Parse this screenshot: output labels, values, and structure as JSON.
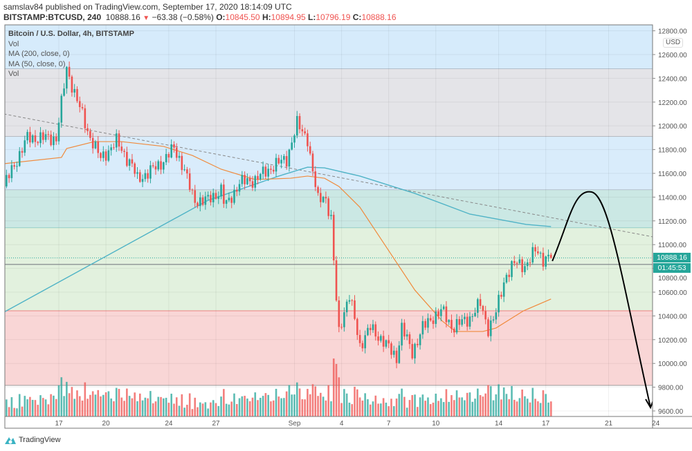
{
  "header": {
    "publisher_line": "samslav84 published on TradingView.com, September 17, 2020 18:14:09 UTC",
    "symbol": "BITSTAMP:BTCUSD, 240",
    "last": "10888.16",
    "change": "−63.38 (−0.58%)",
    "o_label": "O:",
    "o": "10845.50",
    "h_label": "H:",
    "h": "10894.95",
    "l_label": "L:",
    "l": "10796.19",
    "c_label": "C:",
    "c": "10888.16",
    "direction_icon": "triangle-down-icon"
  },
  "legend": {
    "title": "Bitcoin / U.S. Dollar, 4h, BITSTAMP",
    "items": [
      "Vol",
      "MA (200, close, 0)",
      "MA (50, close, 0)",
      "Vol"
    ]
  },
  "axis": {
    "currency": "USD",
    "price_ticks": [
      "12800.00",
      "12600.00",
      "12400.00",
      "12200.00",
      "12000.00",
      "11800.00",
      "11600.00",
      "11400.00",
      "11200.00",
      "11000.00",
      "10800.00",
      "10600.00",
      "10400.00",
      "10200.00",
      "10000.00",
      "9800.00",
      "9600.00"
    ],
    "price_values": [
      12800,
      12600,
      12400,
      12200,
      12000,
      11800,
      11600,
      11400,
      11200,
      11000,
      10800,
      10600,
      10400,
      10200,
      10000,
      9800,
      9600
    ],
    "time_ticks": [
      {
        "label": "17",
        "date": "2020-08-17"
      },
      {
        "label": "20",
        "date": "2020-08-20"
      },
      {
        "label": "24",
        "date": "2020-08-24"
      },
      {
        "label": "27",
        "date": "2020-08-27"
      },
      {
        "label": "Sep",
        "date": "2020-09-01"
      },
      {
        "label": "4",
        "date": "2020-09-04"
      },
      {
        "label": "7",
        "date": "2020-09-07"
      },
      {
        "label": "10",
        "date": "2020-09-10"
      },
      {
        "label": "14",
        "date": "2020-09-14"
      },
      {
        "label": "17",
        "date": "2020-09-17"
      },
      {
        "label": "21",
        "date": "2020-09-21"
      },
      {
        "label": "24",
        "date": "2020-09-24"
      }
    ],
    "last_price_label": "10888.16",
    "countdown_label": "01:45:53"
  },
  "chart_data": {
    "type": "candlestick",
    "interval": "4h",
    "price_path": [
      [
        "2020-08-13T12:00",
        11490
      ],
      [
        "2020-08-15T00:00",
        11897
      ],
      [
        "2020-08-16T20:00",
        11897
      ],
      [
        "2020-08-17T12:00",
        12478
      ],
      [
        "2020-08-18T20:00",
        11955
      ],
      [
        "2020-08-19T16:00",
        11722
      ],
      [
        "2020-08-20T16:00",
        11867
      ],
      [
        "2020-08-21T16:00",
        11664
      ],
      [
        "2020-08-22T00:00",
        11548
      ],
      [
        "2020-08-23T08:00",
        11664
      ],
      [
        "2020-08-24T08:00",
        11809
      ],
      [
        "2020-08-24T22:00",
        11664
      ],
      [
        "2020-08-25T14:00",
        11373
      ],
      [
        "2020-08-26T12:00",
        11373
      ],
      [
        "2020-08-27T08:00",
        11460
      ],
      [
        "2020-08-27T14:00",
        11315
      ],
      [
        "2020-08-28T12:00",
        11519
      ],
      [
        "2020-08-29T12:00",
        11548
      ],
      [
        "2020-08-30T16:00",
        11664
      ],
      [
        "2020-08-31T12:00",
        11722
      ],
      [
        "2020-09-01T04:00",
        12013
      ],
      [
        "2020-09-01T20:00",
        11897
      ],
      [
        "2020-09-02T02:00",
        11664
      ],
      [
        "2020-09-02T12:00",
        11373
      ],
      [
        "2020-09-02T22:00",
        11431
      ],
      [
        "2020-09-03T08:00",
        11199
      ],
      [
        "2020-09-03T14:00",
        10676
      ],
      [
        "2020-09-03T20:00",
        10269
      ],
      [
        "2020-09-04T02:00",
        10414
      ],
      [
        "2020-09-04T12:00",
        10559
      ],
      [
        "2020-09-04T22:00",
        10327
      ],
      [
        "2020-09-05T04:00",
        10152
      ],
      [
        "2020-09-05T20:00",
        10298
      ],
      [
        "2020-09-06T12:00",
        10210
      ],
      [
        "2020-09-07T14:00",
        10036
      ],
      [
        "2020-09-07T18:00",
        10327
      ],
      [
        "2020-09-08T12:00",
        10094
      ],
      [
        "2020-09-09T04:00",
        10298
      ],
      [
        "2020-09-09T18:00",
        10385
      ],
      [
        "2020-09-10T10:00",
        10443
      ],
      [
        "2020-09-11T02:00",
        10298
      ],
      [
        "2020-09-11T18:00",
        10356
      ],
      [
        "2020-09-12T04:00",
        10385
      ],
      [
        "2020-09-12T20:00",
        10501
      ],
      [
        "2020-09-13T08:00",
        10298
      ],
      [
        "2020-09-13T18:00",
        10385
      ],
      [
        "2020-09-14T10:00",
        10734
      ],
      [
        "2020-09-15T02:00",
        10850
      ],
      [
        "2020-09-15T18:00",
        10821
      ],
      [
        "2020-09-16T10:00",
        10966
      ],
      [
        "2020-09-16T20:00",
        10879
      ],
      [
        "2020-09-17T08:00",
        10888.16
      ]
    ],
    "ma200": [
      [
        "2020-08-13T12:00",
        10431
      ],
      [
        "2020-08-26T12:00",
        11373
      ],
      [
        "2020-08-31T00:00",
        11577
      ],
      [
        "2020-09-01T20:00",
        11652
      ],
      [
        "2020-09-02T22:00",
        11646
      ],
      [
        "2020-09-05T04:00",
        11577
      ],
      [
        "2020-09-08T16:00",
        11431
      ],
      [
        "2020-09-12T04:00",
        11257
      ],
      [
        "2020-09-15T18:00",
        11170
      ],
      [
        "2020-09-17T08:00",
        11152
      ]
    ],
    "ma50": [
      [
        "2020-08-13T12:00",
        11681
      ],
      [
        "2020-08-17T04:00",
        11734
      ],
      [
        "2020-08-17T12:00",
        11809
      ],
      [
        "2020-08-19T06:00",
        11867
      ],
      [
        "2020-08-21T00:00",
        11867
      ],
      [
        "2020-08-23T16:00",
        11827
      ],
      [
        "2020-08-25T12:00",
        11751
      ],
      [
        "2020-08-27T08:00",
        11635
      ],
      [
        "2020-08-29T12:00",
        11548
      ],
      [
        "2020-08-31T18:00",
        11559
      ],
      [
        "2020-09-01T20:00",
        11577
      ],
      [
        "2020-09-02T22:00",
        11559
      ],
      [
        "2020-09-03T20:00",
        11490
      ],
      [
        "2020-09-05T04:00",
        11315
      ],
      [
        "2020-09-06T22:00",
        10966
      ],
      [
        "2020-09-08T16:00",
        10617
      ],
      [
        "2020-09-10T10:00",
        10356
      ],
      [
        "2020-09-11T06:00",
        10269
      ],
      [
        "2020-09-13T00:00",
        10269
      ],
      [
        "2020-09-13T20:00",
        10298
      ],
      [
        "2020-09-15T14:00",
        10443
      ],
      [
        "2020-09-17T08:00",
        10542
      ]
    ],
    "trendline": [
      [
        "2020-08-13T12:00",
        12100
      ],
      [
        "2020-09-23T20:00",
        11065
      ]
    ],
    "horizontal_line": 10833,
    "projection_drawing": [
      [
        "2020-09-17T10:00",
        10862
      ],
      [
        "2020-09-19T22:00",
        11443
      ],
      [
        "2020-09-23T16:00",
        9629
      ]
    ],
    "zones": [
      {
        "from": 12478,
        "to": 12900,
        "color": "#d6ebfb"
      },
      {
        "from": 11908,
        "to": 12478,
        "color": "#e4e4e8"
      },
      {
        "from": 11460,
        "to": 11908,
        "color": "#d9ecfb"
      },
      {
        "from": 11140,
        "to": 11460,
        "color": "#cbe8e4"
      },
      {
        "from": 10443,
        "to": 11140,
        "color": "#e2f1de"
      },
      {
        "from": 9815,
        "to": 10443,
        "color": "#f9d6d6"
      }
    ],
    "colors": {
      "up": "#26a69a",
      "down": "#ef5350",
      "ma200": "#4fb3c6",
      "ma50": "#f08a3c",
      "drawing": "#000000",
      "last_price": "#26a69a"
    },
    "ylim": [
      9560,
      12880
    ],
    "xlim": [
      "2020-08-13T12:00",
      "2020-09-24T04:00"
    ],
    "grid": true
  },
  "footer": {
    "brand": "TradingView",
    "logo_icon": "tradingview-logo-icon"
  }
}
